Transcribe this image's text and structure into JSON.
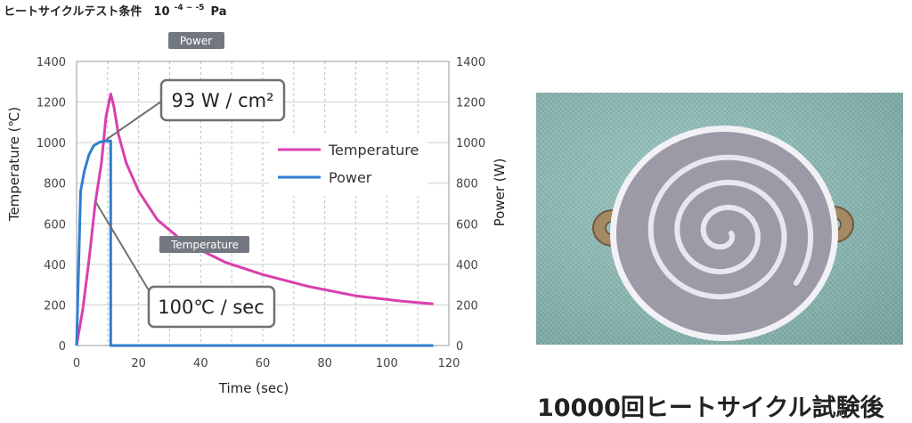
{
  "header": {
    "title": "ヒートサイクルテスト条件",
    "pressure_base": "10",
    "pressure_exp": "-4 ~ -5",
    "pressure_unit": "Pa"
  },
  "chart_data": {
    "type": "line",
    "xlabel": "Time (sec)",
    "ylabel_left": "Temperature (℃)",
    "ylabel_right": "Power (W)",
    "xlim": [
      0,
      120
    ],
    "ylim_left": [
      0,
      1400
    ],
    "ylim_right": [
      0,
      1400
    ],
    "x_ticks": [
      "0",
      "20",
      "40",
      "60",
      "80",
      "100",
      "120"
    ],
    "y_ticks_left": [
      "0",
      "200",
      "400",
      "600",
      "800",
      "1000",
      "1200",
      "1400"
    ],
    "y_ticks_right": [
      "0",
      "200",
      "400",
      "600",
      "800",
      "1000",
      "1200",
      "1400"
    ],
    "grid": true,
    "legend_position": "upper-right-inside",
    "series": [
      {
        "name": "Temperature",
        "color": "#d93fae",
        "axis": "left",
        "points": [
          [
            0,
            0
          ],
          [
            2,
            180
          ],
          [
            4,
            420
          ],
          [
            6,
            700
          ],
          [
            8,
            900
          ],
          [
            9.5,
            1130
          ],
          [
            11,
            1240
          ],
          [
            12,
            1180
          ],
          [
            13.5,
            1040
          ],
          [
            16,
            900
          ],
          [
            20,
            760
          ],
          [
            26,
            620
          ],
          [
            33,
            530
          ],
          [
            40,
            470
          ],
          [
            48,
            410
          ],
          [
            60,
            350
          ],
          [
            75,
            290
          ],
          [
            90,
            245
          ],
          [
            105,
            218
          ],
          [
            115,
            205
          ]
        ]
      },
      {
        "name": "Power",
        "color": "#2e7fd0",
        "axis": "right",
        "points": [
          [
            0,
            0
          ],
          [
            1.3,
            760
          ],
          [
            2.5,
            860
          ],
          [
            4,
            940
          ],
          [
            5.5,
            985
          ],
          [
            7.5,
            1003
          ],
          [
            9.5,
            1008
          ],
          [
            11,
            1008
          ],
          [
            11,
            0
          ],
          [
            115,
            0
          ]
        ]
      }
    ],
    "annotations": {
      "power_callout": "93 W / cm²",
      "temperature_callout": "100℃ / sec",
      "power_tag": "Power",
      "temperature_tag": "Temperature"
    }
  },
  "photo": {
    "caption": "10000回ヒートサイクル試験後",
    "background_color": "#8fbcb7",
    "heater_color": "#9d9aa8",
    "trace_color": "#e8e6ee"
  }
}
